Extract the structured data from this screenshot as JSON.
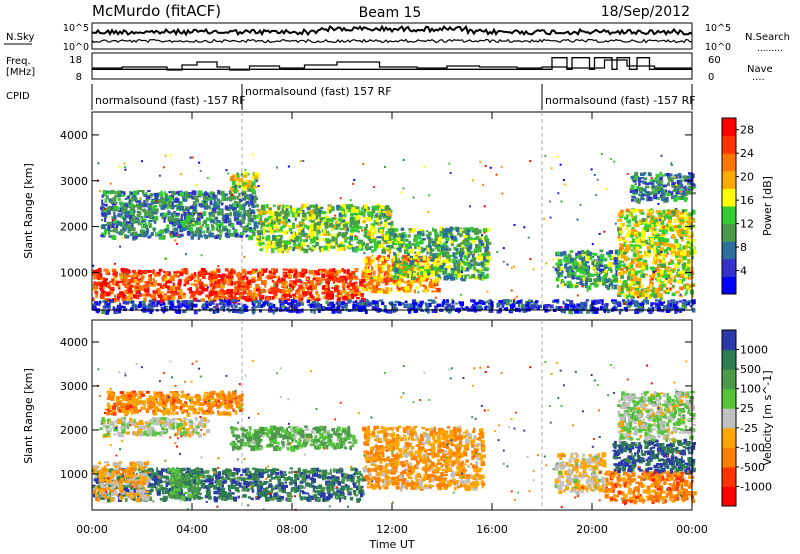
{
  "header": {
    "station": "McMurdo (fitACF)",
    "beam": "Beam 15",
    "date": "18/Sep/2012"
  },
  "summary": {
    "nsky_label": "N.Sky",
    "nsky_ticks": [
      "10^5",
      "10^0"
    ],
    "nsearch_ticks": [
      "10^5",
      "10^0"
    ],
    "nsearch_label": "N.Search",
    "nsearch_legend": ".........",
    "freq_label_1": "Freq.",
    "freq_label_2": "[MHz]",
    "freq_ticks": [
      "18",
      "8"
    ],
    "nave_ticks": [
      "60",
      "0"
    ],
    "nave_label": "Nave",
    "nave_legend": "····",
    "cpid_label": "CPID",
    "cpid_segments": [
      {
        "start": 0,
        "end": 6,
        "label": "normalsound (fast) -157 RF"
      },
      {
        "start": 6,
        "end": 18,
        "label": "normalsound (fast) 157 RF"
      },
      {
        "start": 18,
        "end": 24,
        "label": "normalsound (fast) -157 RF"
      }
    ],
    "freq_steps": [
      [
        0,
        12
      ],
      [
        1.2,
        12.5
      ],
      [
        3.0,
        11
      ],
      [
        3.6,
        13.5
      ],
      [
        4.2,
        15
      ],
      [
        5.0,
        12.5
      ],
      [
        5.5,
        11
      ],
      [
        6.3,
        13
      ],
      [
        7.5,
        12
      ],
      [
        8.5,
        13.5
      ],
      [
        9.8,
        15
      ],
      [
        11.5,
        12.5
      ],
      [
        13.0,
        12
      ],
      [
        14.2,
        13
      ],
      [
        15.5,
        12.5
      ],
      [
        17.0,
        12
      ],
      [
        18.0,
        12.5
      ],
      [
        19.0,
        12
      ],
      [
        20.5,
        16
      ],
      [
        21.4,
        13
      ],
      [
        22.5,
        12
      ],
      [
        24,
        12
      ]
    ],
    "nave_steps": [
      [
        0,
        20
      ],
      [
        18.3,
        20
      ],
      [
        18.4,
        55
      ],
      [
        19.0,
        20
      ],
      [
        19.2,
        55
      ],
      [
        19.9,
        20
      ],
      [
        20.1,
        55
      ],
      [
        20.8,
        20
      ],
      [
        21.0,
        55
      ],
      [
        21.5,
        20
      ],
      [
        21.8,
        55
      ],
      [
        22.3,
        20
      ],
      [
        24,
        20
      ]
    ]
  },
  "chart_data": [
    {
      "type": "heatmap",
      "panel": "power",
      "ylabel": "Slant Range [km]",
      "xlim": [
        0,
        24
      ],
      "ylim": [
        180,
        4500
      ],
      "yticks": [
        1000,
        2000,
        3000,
        4000
      ],
      "colorbar_label": "Power [dB]",
      "colorbar_ticks": [
        "4",
        "8",
        "12",
        "16",
        "20",
        "24",
        "28"
      ],
      "colorbar_range": [
        0,
        30
      ],
      "colors": [
        "#0000ff",
        "#3333cc",
        "#2e6e9a",
        "#4a9a4a",
        "#33cc33",
        "#ffff00",
        "#ffaa00",
        "#ff7700",
        "#ff3300",
        "#ff0000"
      ],
      "regions": [
        {
          "t0": 0.0,
          "t1": 10.8,
          "r0": 420,
          "r1": 1100,
          "level": 0.85
        },
        {
          "t0": 10.8,
          "t1": 13.8,
          "r0": 600,
          "r1": 1400,
          "level": 0.7
        },
        {
          "t0": 12.0,
          "t1": 15.8,
          "r0": 900,
          "r1": 2000,
          "level": 0.4
        },
        {
          "t0": 0.3,
          "t1": 6.5,
          "r0": 1800,
          "r1": 2800,
          "level": 0.3
        },
        {
          "t0": 5.5,
          "t1": 6.5,
          "r0": 2800,
          "r1": 3200,
          "level": 0.55
        },
        {
          "t0": 6.5,
          "t1": 12.0,
          "r0": 1500,
          "r1": 2500,
          "level": 0.45
        },
        {
          "t0": 18.5,
          "t1": 21.0,
          "r0": 700,
          "r1": 1500,
          "level": 0.35
        },
        {
          "t0": 21.0,
          "t1": 24.0,
          "r0": 500,
          "r1": 2400,
          "level": 0.55
        },
        {
          "t0": 21.5,
          "t1": 24.0,
          "r0": 2600,
          "r1": 3200,
          "level": 0.3
        },
        {
          "t0": 0.0,
          "t1": 24.0,
          "r0": 180,
          "r1": 420,
          "level": 0.15
        }
      ]
    },
    {
      "type": "heatmap",
      "panel": "velocity",
      "ylabel": "Slant Range [km]",
      "xlabel": "Time UT",
      "xlim": [
        0,
        24
      ],
      "ylim": [
        180,
        4500
      ],
      "yticks": [
        1000,
        2000,
        3000,
        4000
      ],
      "xticks": [
        "00:00",
        "04:00",
        "08:00",
        "12:00",
        "16:00",
        "20:00",
        "00:00"
      ],
      "colorbar_label": "Velocity [m s^-1]",
      "colorbar_ticks": [
        "1000",
        "500",
        "100",
        "25",
        "-25",
        "-100",
        "-500",
        "-1000"
      ],
      "colors": [
        "#2b3aa8",
        "#2e7d52",
        "#4a9a4a",
        "#57c43d",
        "#c0c0c0",
        "#ffa500",
        "#ff8000",
        "#ff3300",
        "#ff0000"
      ],
      "regions": [
        {
          "t0": 0.0,
          "t1": 10.8,
          "r0": 450,
          "r1": 1150,
          "level": 0.15
        },
        {
          "t0": 0.0,
          "t1": 2.2,
          "r0": 450,
          "r1": 1300,
          "level": 0.6
        },
        {
          "t0": 3.0,
          "t1": 4.2,
          "r0": 500,
          "r1": 1150,
          "level": 0.3
        },
        {
          "t0": 10.8,
          "t1": 15.6,
          "r0": 700,
          "r1": 2100,
          "level": 0.65
        },
        {
          "t0": 0.3,
          "t1": 4.6,
          "r0": 1900,
          "r1": 2300,
          "level": 0.5
        },
        {
          "t0": 0.5,
          "t1": 6.0,
          "r0": 2400,
          "r1": 2900,
          "level": 0.7
        },
        {
          "t0": 5.5,
          "t1": 10.5,
          "r0": 1600,
          "r1": 2100,
          "level": 0.35
        },
        {
          "t0": 18.5,
          "t1": 20.5,
          "r0": 600,
          "r1": 1500,
          "level": 0.55
        },
        {
          "t0": 20.5,
          "t1": 24.0,
          "r0": 400,
          "r1": 1100,
          "level": 0.7
        },
        {
          "t0": 20.8,
          "t1": 24.0,
          "r0": 1100,
          "r1": 1800,
          "level": 0.1
        },
        {
          "t0": 21.0,
          "t1": 24.0,
          "r0": 1800,
          "r1": 2900,
          "level": 0.45
        }
      ]
    }
  ]
}
